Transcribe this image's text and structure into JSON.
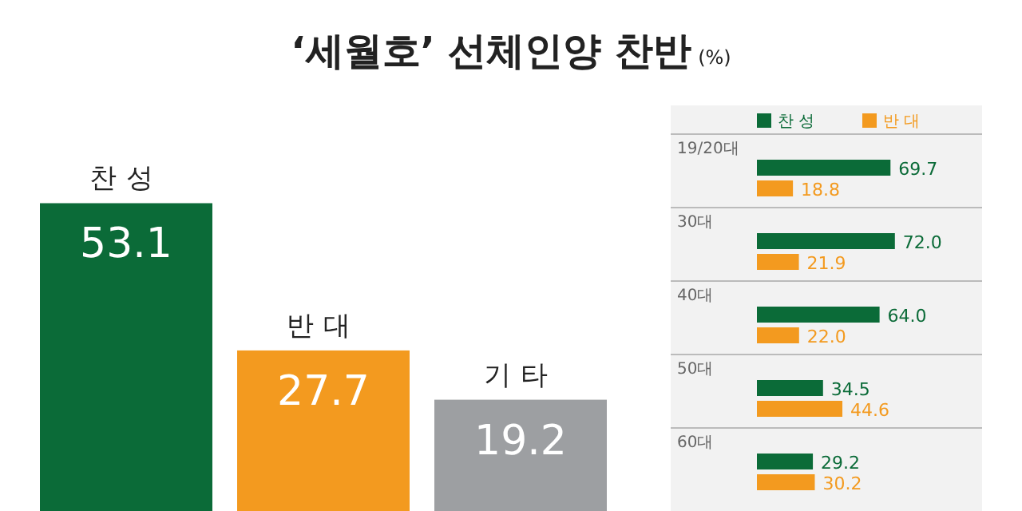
{
  "chart_data": [
    {
      "type": "bar",
      "title": "‘세월호’ 선체인양 찬반",
      "ylabel": "(%)",
      "categories": [
        "찬성",
        "반대",
        "기타"
      ],
      "values": [
        53.1,
        27.7,
        19.2
      ],
      "colors": [
        "#0b6b38",
        "#f39a1f",
        "#9d9fa2"
      ],
      "data_labels": true
    },
    {
      "type": "bar",
      "orientation": "horizontal",
      "categories": [
        "19/20대",
        "30대",
        "40대",
        "50대",
        "60대"
      ],
      "legend": "top",
      "series": [
        {
          "name": "찬성",
          "color": "#0b6b38",
          "values": [
            69.7,
            72.0,
            64.0,
            34.5,
            29.2
          ],
          "value_labels": [
            "69.7",
            "72.0",
            "64.0",
            "34.5",
            "29.2"
          ]
        },
        {
          "name": "반대",
          "color": "#f39a1f",
          "values": [
            18.8,
            21.9,
            22.0,
            44.6,
            30.2
          ],
          "value_labels": [
            "18.8",
            "21.9",
            "22.0",
            "44.6",
            "30.2"
          ]
        }
      ]
    }
  ]
}
